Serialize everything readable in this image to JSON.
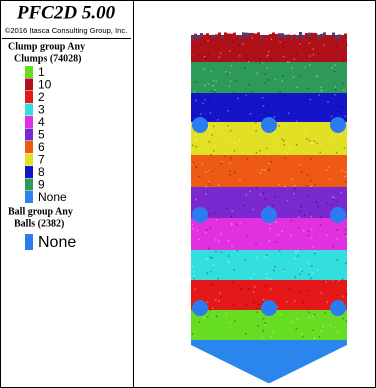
{
  "header": {
    "title": "PFC2D 5.00",
    "copyright": "©2016 Itasca Consulting Group, Inc."
  },
  "clump_legend": {
    "group": "Clump group Any",
    "count_label": "Clumps (74028)",
    "items": [
      {
        "label": "1",
        "color": "#66dd22"
      },
      {
        "label": "10",
        "color": "#b01018"
      },
      {
        "label": "2",
        "color": "#e41818"
      },
      {
        "label": "3",
        "color": "#33dede"
      },
      {
        "label": "4",
        "color": "#e030e0"
      },
      {
        "label": "5",
        "color": "#7a28d0"
      },
      {
        "label": "6",
        "color": "#ee5a14"
      },
      {
        "label": "7",
        "color": "#e2e024"
      },
      {
        "label": "8",
        "color": "#1414c8"
      },
      {
        "label": "9",
        "color": "#2e9a5a"
      },
      {
        "label": "None",
        "color": "#2a86ec"
      }
    ]
  },
  "ball_legend": {
    "group": "Ball group Any",
    "count_label": "Balls (2382)",
    "items": [
      {
        "label": "None",
        "color": "#2a7cf0"
      }
    ]
  }
}
